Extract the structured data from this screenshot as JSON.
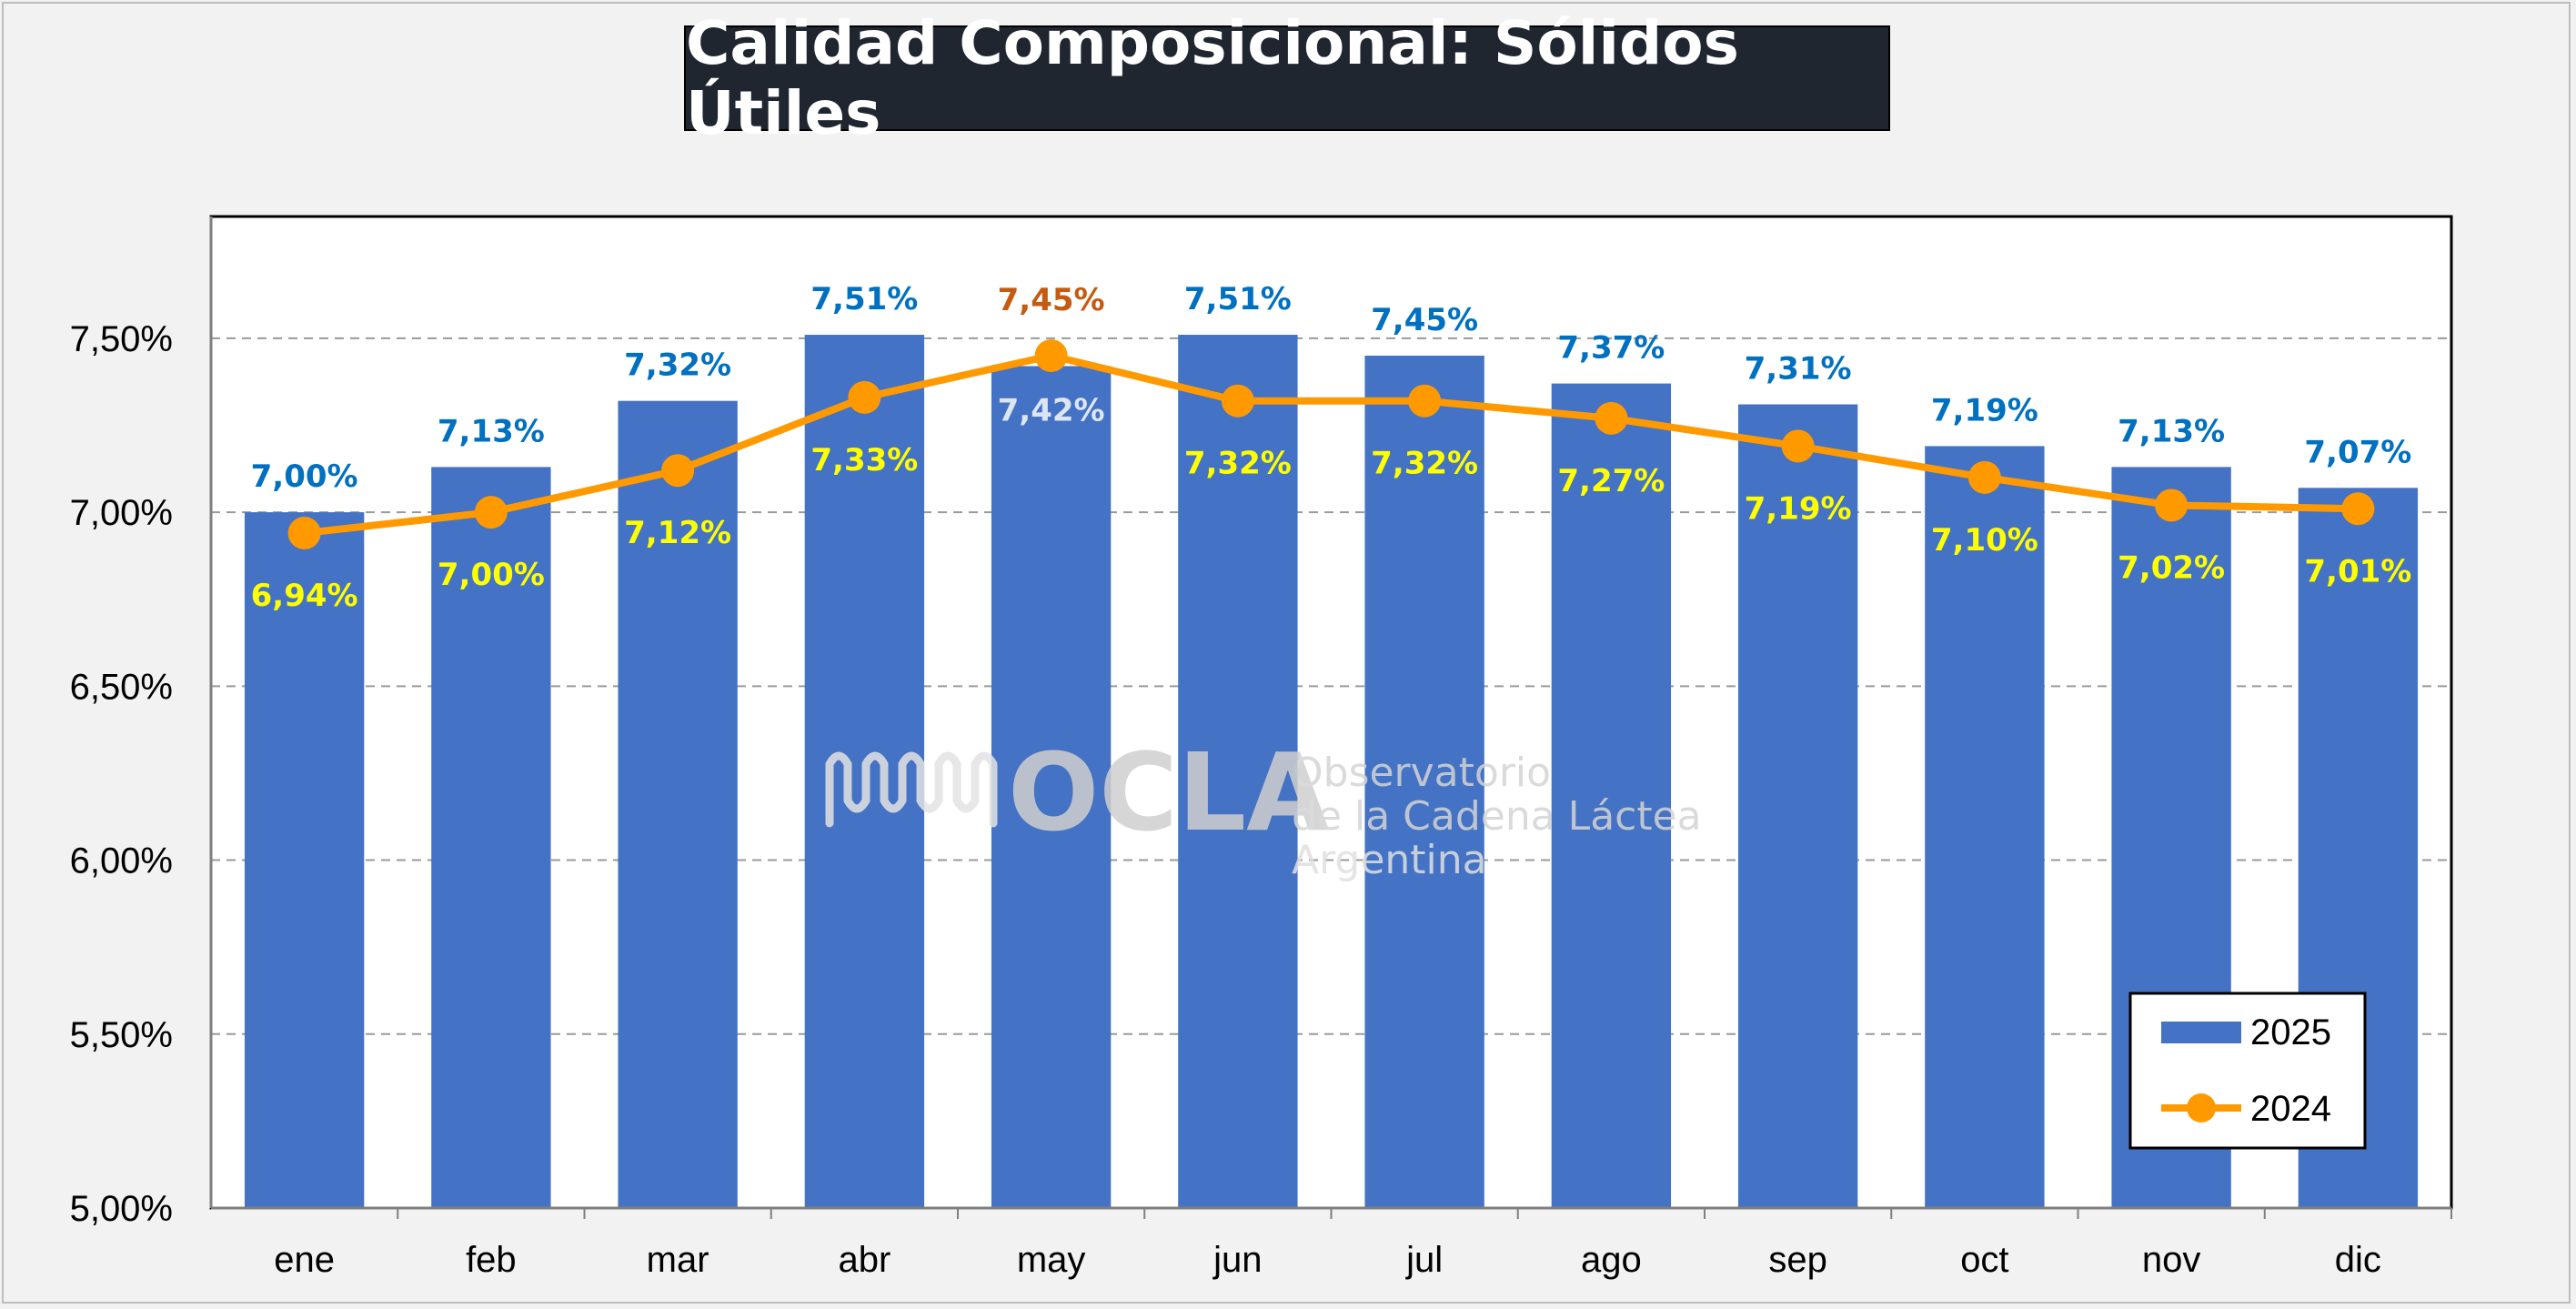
{
  "chart_data": {
    "type": "bar",
    "title": "Calidad Composicional: Sólidos Útiles",
    "categories": [
      "ene",
      "feb",
      "mar",
      "abr",
      "may",
      "jun",
      "jul",
      "ago",
      "sep",
      "oct",
      "nov",
      "dic"
    ],
    "ylim": [
      5.0,
      7.85
    ],
    "yticks": [
      "5,00%",
      "5,50%",
      "6,00%",
      "6,50%",
      "7,00%",
      "7,50%"
    ],
    "ytick_values": [
      5.0,
      5.5,
      6.0,
      6.5,
      7.0,
      7.5
    ],
    "grid": true,
    "legend_position": "bottom-right",
    "series": [
      {
        "name": "2025",
        "type": "bar",
        "color": "#4472c4",
        "label_color": "#0070c0",
        "values": [
          7.0,
          7.13,
          7.32,
          7.51,
          7.42,
          7.51,
          7.45,
          7.37,
          7.31,
          7.19,
          7.13,
          7.07
        ],
        "labels": [
          "7,00%",
          "7,13%",
          "7,32%",
          "7,51%",
          "7,42%",
          "7,51%",
          "7,45%",
          "7,37%",
          "7,31%",
          "7,19%",
          "7,13%",
          "7,07%"
        ]
      },
      {
        "name": "2024",
        "type": "line",
        "color": "#ff9900",
        "label_color": "#ffff00",
        "values": [
          6.94,
          7.0,
          7.12,
          7.33,
          7.45,
          7.32,
          7.32,
          7.27,
          7.19,
          7.1,
          7.02,
          7.01
        ],
        "labels": [
          "6,94%",
          "7,00%",
          "7,12%",
          "7,33%",
          "7,45%",
          "7,32%",
          "7,32%",
          "7,27%",
          "7,19%",
          "7,10%",
          "7,02%",
          "7,01%"
        ]
      }
    ]
  },
  "style": {
    "may_line_label_color": "#c55a11",
    "may_bar_label_color": "#dce6f2"
  },
  "watermark": {
    "brand": "OCLA",
    "line1": "Observatorio",
    "line2": "de la Cadena Láctea",
    "line3": "Argentina"
  }
}
